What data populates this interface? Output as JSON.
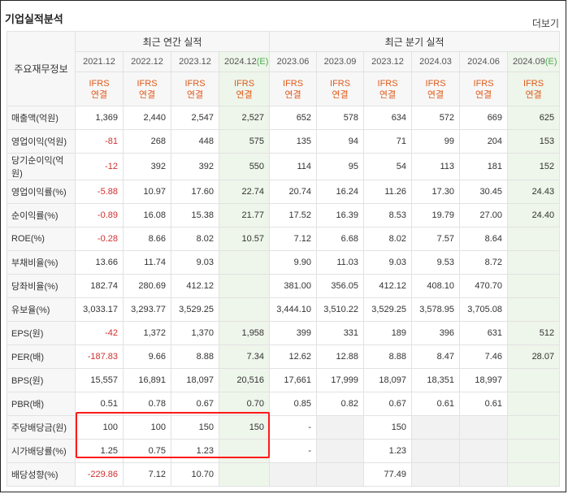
{
  "title": "기업실적분석",
  "more_label": "더보기",
  "header": {
    "corner": "주요재무정보",
    "annual_label": "최근 연간 실적",
    "quarter_label": "최근 분기 실적",
    "annual_periods": [
      "2021.12",
      "2022.12",
      "2023.12",
      "2024.12"
    ],
    "annual_est_suffix": "(E)",
    "quarter_periods": [
      "2023.06",
      "2023.09",
      "2023.12",
      "2024.03",
      "2024.06",
      "2024.09"
    ],
    "quarter_est_suffix": "(E)",
    "ifrs_top": "IFRS",
    "ifrs_bottom": "연결"
  },
  "rows": [
    {
      "label": "매출액(억원)",
      "values": [
        "1,369",
        "2,440",
        "2,547",
        "2,527",
        "652",
        "578",
        "634",
        "572",
        "669",
        "625"
      ]
    },
    {
      "label": "영업이익(억원)",
      "values": [
        "-81",
        "268",
        "448",
        "575",
        "135",
        "94",
        "71",
        "99",
        "204",
        "153"
      ]
    },
    {
      "label": "당기순이익(억원)",
      "values": [
        "-12",
        "392",
        "392",
        "550",
        "114",
        "95",
        "54",
        "113",
        "181",
        "152"
      ]
    },
    {
      "label": "영업이익률(%)",
      "values": [
        "-5.88",
        "10.97",
        "17.60",
        "22.74",
        "20.74",
        "16.24",
        "11.26",
        "17.30",
        "30.45",
        "24.43"
      ]
    },
    {
      "label": "순이익률(%)",
      "values": [
        "-0.89",
        "16.08",
        "15.38",
        "21.77",
        "17.52",
        "16.39",
        "8.53",
        "19.79",
        "27.00",
        "24.40"
      ]
    },
    {
      "label": "ROE(%)",
      "values": [
        "-0.28",
        "8.66",
        "8.02",
        "10.57",
        "7.12",
        "6.68",
        "8.02",
        "7.57",
        "8.64",
        ""
      ]
    },
    {
      "label": "부채비율(%)",
      "values": [
        "13.66",
        "11.74",
        "9.03",
        "",
        "9.90",
        "11.03",
        "9.03",
        "9.53",
        "8.72",
        ""
      ]
    },
    {
      "label": "당좌비율(%)",
      "values": [
        "182.74",
        "280.69",
        "412.12",
        "",
        "381.00",
        "356.05",
        "412.12",
        "408.10",
        "470.70",
        ""
      ]
    },
    {
      "label": "유보율(%)",
      "values": [
        "3,033.17",
        "3,293.77",
        "3,529.25",
        "",
        "3,444.10",
        "3,510.22",
        "3,529.25",
        "3,578.95",
        "3,705.08",
        ""
      ]
    },
    {
      "label": "EPS(원)",
      "values": [
        "-42",
        "1,372",
        "1,370",
        "1,958",
        "399",
        "331",
        "189",
        "396",
        "631",
        "512"
      ]
    },
    {
      "label": "PER(배)",
      "values": [
        "-187.83",
        "9.66",
        "8.88",
        "7.34",
        "12.62",
        "12.88",
        "8.88",
        "8.47",
        "7.46",
        "28.07"
      ]
    },
    {
      "label": "BPS(원)",
      "values": [
        "15,557",
        "16,891",
        "18,097",
        "20,516",
        "17,661",
        "17,999",
        "18,097",
        "18,351",
        "18,997",
        ""
      ]
    },
    {
      "label": "PBR(배)",
      "values": [
        "0.51",
        "0.78",
        "0.67",
        "0.70",
        "0.85",
        "0.82",
        "0.67",
        "0.61",
        "0.61",
        ""
      ]
    },
    {
      "label": "주당배당금(원)",
      "values": [
        "100",
        "100",
        "150",
        "150",
        "-",
        "",
        "150",
        "",
        "",
        ""
      ]
    },
    {
      "label": "시가배당률(%)",
      "values": [
        "1.25",
        "0.75",
        "1.23",
        "",
        "-",
        "",
        "1.23",
        "",
        "",
        ""
      ]
    },
    {
      "label": "배당성향(%)",
      "values": [
        "-229.86",
        "7.12",
        "10.70",
        "",
        "",
        "",
        "77.49",
        "",
        "",
        ""
      ]
    }
  ],
  "highlight_color": "#ff1a1a",
  "estimate_column_color": "#eef5ea"
}
